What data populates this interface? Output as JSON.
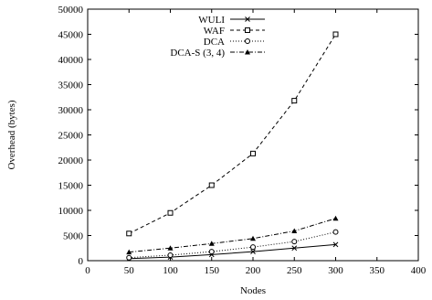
{
  "chart_data": {
    "type": "line",
    "xlabel": "Nodes",
    "ylabel": "Overhead (bytes)",
    "xlim": [
      0,
      400
    ],
    "ylim": [
      0,
      50000
    ],
    "x_ticks": [
      0,
      50,
      100,
      150,
      200,
      250,
      300,
      350,
      400
    ],
    "y_ticks": [
      0,
      5000,
      10000,
      15000,
      20000,
      25000,
      30000,
      35000,
      40000,
      45000,
      50000
    ],
    "x_tick_labels": [
      "0",
      "50",
      "100",
      "150",
      "200",
      "250",
      "300",
      "350",
      "400"
    ],
    "y_tick_labels": [
      "0",
      "5000",
      "10000",
      "15000",
      "20000",
      "25000",
      "30000",
      "35000",
      "40000",
      "45000",
      "50000"
    ],
    "grid": false,
    "legend_position": "top-left",
    "series": [
      {
        "name": "WULI",
        "marker": "cross",
        "dash": "solid",
        "x": [
          50,
          100,
          150,
          200,
          250,
          300
        ],
        "y": [
          400,
          700,
          1200,
          1800,
          2500,
          3200
        ]
      },
      {
        "name": "WAF",
        "marker": "square",
        "dash": "dashed",
        "x": [
          50,
          100,
          150,
          200,
          250,
          300
        ],
        "y": [
          5400,
          9500,
          15000,
          21300,
          31800,
          45000
        ]
      },
      {
        "name": "DCA",
        "marker": "circle",
        "dash": "dotted",
        "x": [
          50,
          100,
          150,
          200,
          250,
          300
        ],
        "y": [
          600,
          1100,
          1800,
          2700,
          3800,
          5700
        ]
      },
      {
        "name": "DCA-S (3, 4)",
        "marker": "triangle",
        "dash": "dashdot",
        "x": [
          50,
          100,
          150,
          200,
          250,
          300
        ],
        "y": [
          1700,
          2500,
          3400,
          4400,
          5900,
          8400
        ]
      }
    ]
  }
}
